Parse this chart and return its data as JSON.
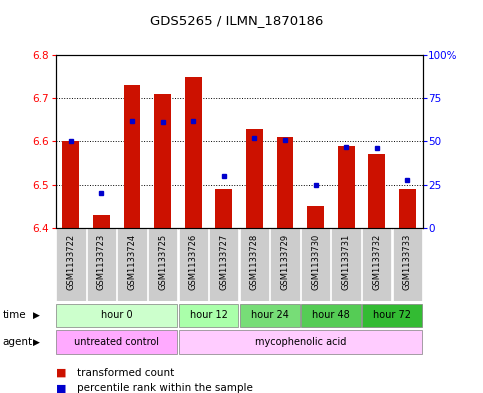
{
  "title": "GDS5265 / ILMN_1870186",
  "samples": [
    "GSM1133722",
    "GSM1133723",
    "GSM1133724",
    "GSM1133725",
    "GSM1133726",
    "GSM1133727",
    "GSM1133728",
    "GSM1133729",
    "GSM1133730",
    "GSM1133731",
    "GSM1133732",
    "GSM1133733"
  ],
  "transformed_counts": [
    6.6,
    6.43,
    6.73,
    6.71,
    6.75,
    6.49,
    6.63,
    6.61,
    6.45,
    6.59,
    6.57,
    6.49
  ],
  "percentile_ranks": [
    50,
    20,
    62,
    61,
    62,
    30,
    52,
    51,
    25,
    47,
    46,
    28
  ],
  "ylim_left": [
    6.4,
    6.8
  ],
  "ylim_right": [
    0,
    100
  ],
  "yticks_left": [
    6.4,
    6.5,
    6.6,
    6.7,
    6.8
  ],
  "yticks_right": [
    0,
    25,
    50,
    75,
    100
  ],
  "bar_color": "#cc1100",
  "marker_color": "#0000cc",
  "bar_bottom": 6.4,
  "time_groups": [
    {
      "label": "hour 0",
      "start": 0,
      "end": 4,
      "color": "#ccffcc"
    },
    {
      "label": "hour 12",
      "start": 4,
      "end": 6,
      "color": "#aaffaa"
    },
    {
      "label": "hour 24",
      "start": 6,
      "end": 8,
      "color": "#77dd77"
    },
    {
      "label": "hour 48",
      "start": 8,
      "end": 10,
      "color": "#55cc55"
    },
    {
      "label": "hour 72",
      "start": 10,
      "end": 12,
      "color": "#33bb33"
    }
  ],
  "agent_groups": [
    {
      "label": "untreated control",
      "start": 0,
      "end": 4,
      "color": "#ffaaff"
    },
    {
      "label": "mycophenolic acid",
      "start": 4,
      "end": 12,
      "color": "#ffccff"
    }
  ],
  "legend_bar_label": "transformed count",
  "legend_marker_label": "percentile rank within the sample",
  "sample_bg_color": "#cccccc",
  "bg_color": "#ffffff",
  "right_tick_labels": [
    "0",
    "25",
    "50",
    "75",
    "100%"
  ]
}
